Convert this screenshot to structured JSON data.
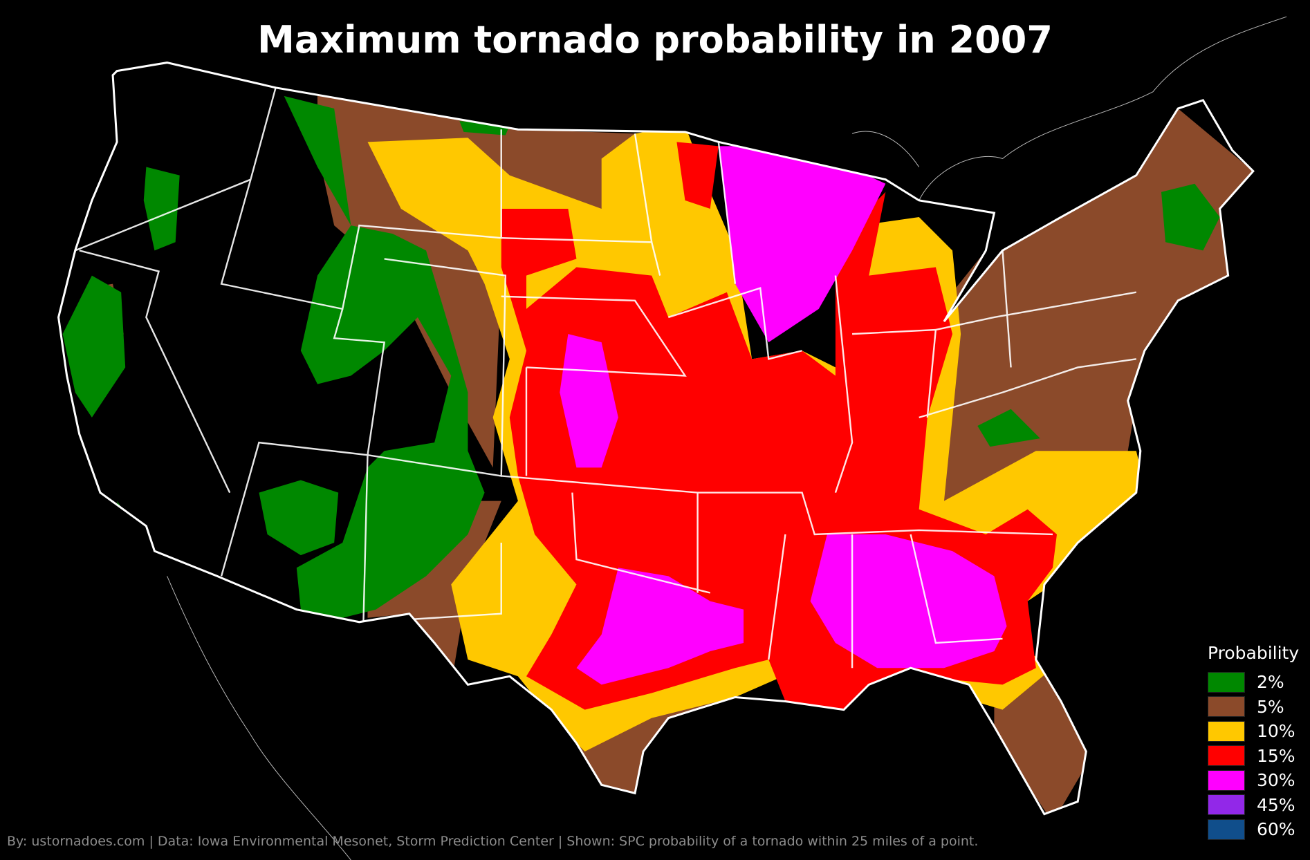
{
  "title": "Maximum tornado probability in 2007",
  "legend": {
    "title": "Probability",
    "items": [
      {
        "label": "2%",
        "color": "#008800"
      },
      {
        "label": "5%",
        "color": "#8b4a2a"
      },
      {
        "label": "10%",
        "color": "#ffc800"
      },
      {
        "label": "15%",
        "color": "#ff0000"
      },
      {
        "label": "30%",
        "color": "#ff00ff"
      },
      {
        "label": "45%",
        "color": "#9228e8"
      },
      {
        "label": "60%",
        "color": "#104e8b"
      }
    ]
  },
  "credit": "By: ustornadoes.com | Data: Iowa Environmental Mesonet, Storm Prediction Center | Shown: SPC probability of a tornado within 25 miles of a point."
}
